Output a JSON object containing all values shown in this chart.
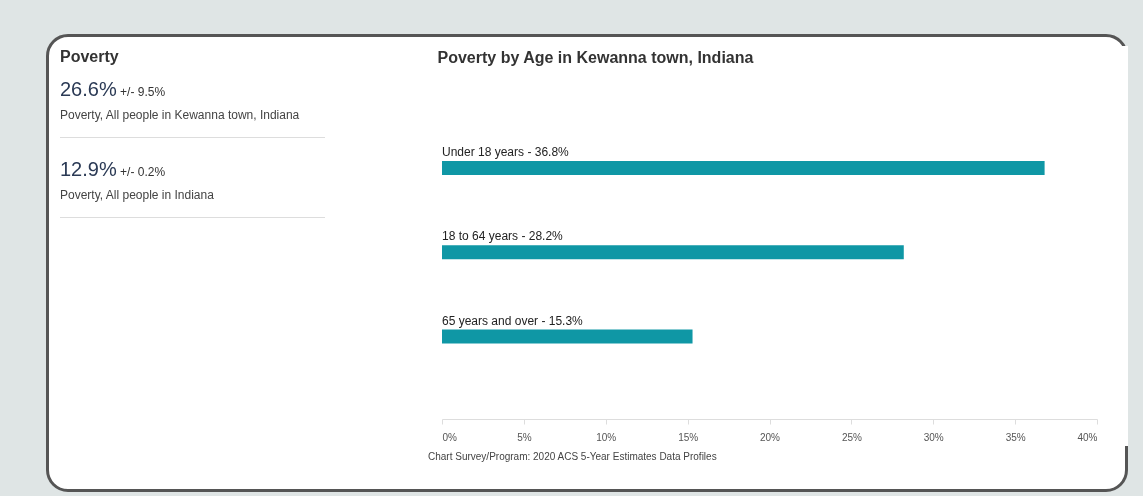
{
  "chart_data": [
    {
      "type": "other",
      "title": "Poverty",
      "annotations": [
        "26.6%",
        "+/- 9.5%",
        "Poverty, All people in Kewanna town, Indiana",
        "12.9%",
        "+/- 0.2%",
        "Poverty, All people in Indiana"
      ]
    },
    {
      "type": "bar",
      "orientation": "horizontal",
      "title": "Poverty by Age in Kewanna town, Indiana",
      "categories": [
        "Under 18 years -",
        "18 to 64 years -",
        "65 years and over -"
      ],
      "values": [
        36.8,
        28.2,
        15.3
      ],
      "value_labels": [
        "36.8%",
        "28.2%",
        "15.3%"
      ],
      "color": "#0f97a5",
      "xlim": [
        0,
        40
      ],
      "xticks": [
        {
          "value": 0,
          "label": "0%"
        },
        {
          "value": 5,
          "label": "5%"
        },
        {
          "value": 10,
          "label": "10%"
        },
        {
          "value": 15,
          "label": "15%"
        },
        {
          "value": 20,
          "label": "20%"
        },
        {
          "value": 25,
          "label": "25%"
        },
        {
          "value": 30,
          "label": "30%"
        },
        {
          "value": 35,
          "label": "35%"
        },
        {
          "value": 40,
          "label": "40%"
        }
      ],
      "tick_labels": "x",
      "annotations": [
        "Chart Survey/Program: 2020 ACS 5-Year Estimates Data Profiles"
      ]
    }
  ]
}
